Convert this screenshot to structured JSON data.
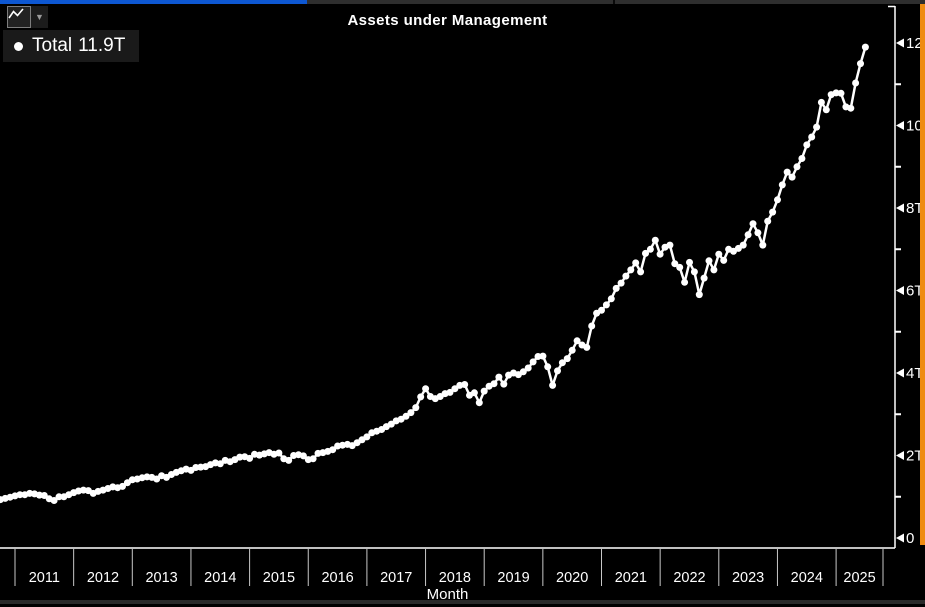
{
  "window": {
    "top_bar_left_color": "#0d57d2",
    "top_bar_right_color": "#2e2e2e"
  },
  "toolbar": {
    "chart_type_icon": "line-chart-icon",
    "dropdown_icon": "caret-down-icon"
  },
  "legend": {
    "marker": "dot",
    "label": "Total",
    "value": "11.9T"
  },
  "colors": {
    "accent_blue": "#0d57d2",
    "accent_orange": "#ef8b11",
    "line": "#ffffff",
    "axis": "#ffffff",
    "year_tick": "#c8c8c8",
    "background": "#000000",
    "legend_bg": "#1a1a1a"
  },
  "chart_data": {
    "type": "line",
    "title": "Assets under Management",
    "xlabel": "Month",
    "ylabel": "",
    "legend_position": "top-left",
    "grid": "off",
    "marker": "circle",
    "line_color": "#ffffff",
    "x_year_labels": [
      "2011",
      "2012",
      "2013",
      "2014",
      "2015",
      "2016",
      "2017",
      "2018",
      "2019",
      "2020",
      "2021",
      "2022",
      "2023",
      "2024",
      "2025"
    ],
    "y_tick_labels": [
      "12T",
      "10T",
      "8T",
      "6T",
      "4T",
      "2T",
      "0"
    ],
    "y_tick_values": [
      12,
      10,
      8,
      6,
      4,
      2,
      0
    ],
    "y_minor_tick_values": [
      11,
      9,
      7,
      5,
      3,
      1
    ],
    "ylim": [
      0,
      12.4
    ],
    "unit": "trillion USD",
    "series": [
      {
        "name": "Total",
        "start_month": "2010-10",
        "frequency": "monthly",
        "last_value_label": "11.9T",
        "values": [
          0.93,
          0.96,
          0.99,
          1.02,
          1.05,
          1.05,
          1.08,
          1.07,
          1.04,
          1.03,
          0.95,
          0.91,
          1.0,
          1.0,
          1.05,
          1.1,
          1.14,
          1.16,
          1.15,
          1.08,
          1.13,
          1.16,
          1.2,
          1.24,
          1.22,
          1.25,
          1.34,
          1.41,
          1.43,
          1.46,
          1.48,
          1.47,
          1.43,
          1.51,
          1.47,
          1.54,
          1.59,
          1.63,
          1.67,
          1.64,
          1.71,
          1.72,
          1.73,
          1.78,
          1.82,
          1.8,
          1.88,
          1.85,
          1.9,
          1.96,
          1.97,
          1.93,
          2.03,
          2.01,
          2.04,
          2.07,
          2.03,
          2.06,
          1.92,
          1.88,
          2.0,
          2.02,
          1.99,
          1.9,
          1.92,
          2.05,
          2.07,
          2.1,
          2.14,
          2.23,
          2.25,
          2.27,
          2.24,
          2.31,
          2.38,
          2.45,
          2.55,
          2.59,
          2.63,
          2.7,
          2.76,
          2.84,
          2.88,
          2.95,
          3.04,
          3.16,
          3.42,
          3.62,
          3.43,
          3.38,
          3.43,
          3.5,
          3.53,
          3.62,
          3.7,
          3.72,
          3.46,
          3.52,
          3.28,
          3.56,
          3.68,
          3.74,
          3.9,
          3.73,
          3.95,
          4.0,
          3.96,
          4.03,
          4.12,
          4.27,
          4.4,
          4.41,
          4.15,
          3.7,
          4.05,
          4.25,
          4.35,
          4.55,
          4.78,
          4.68,
          4.62,
          5.14,
          5.45,
          5.52,
          5.65,
          5.8,
          6.05,
          6.18,
          6.35,
          6.5,
          6.67,
          6.45,
          6.9,
          7.0,
          7.22,
          6.88,
          7.05,
          7.1,
          6.65,
          6.56,
          6.2,
          6.68,
          6.45,
          5.9,
          6.3,
          6.72,
          6.5,
          6.88,
          6.73,
          7.0,
          6.95,
          7.02,
          7.1,
          7.35,
          7.62,
          7.4,
          7.1,
          7.68,
          7.9,
          8.2,
          8.56,
          8.87,
          8.75,
          9.0,
          9.2,
          9.53,
          9.72,
          9.96,
          10.56,
          10.38,
          10.75,
          10.79,
          10.78,
          10.45,
          10.42,
          11.03,
          11.5,
          11.9
        ]
      }
    ]
  }
}
